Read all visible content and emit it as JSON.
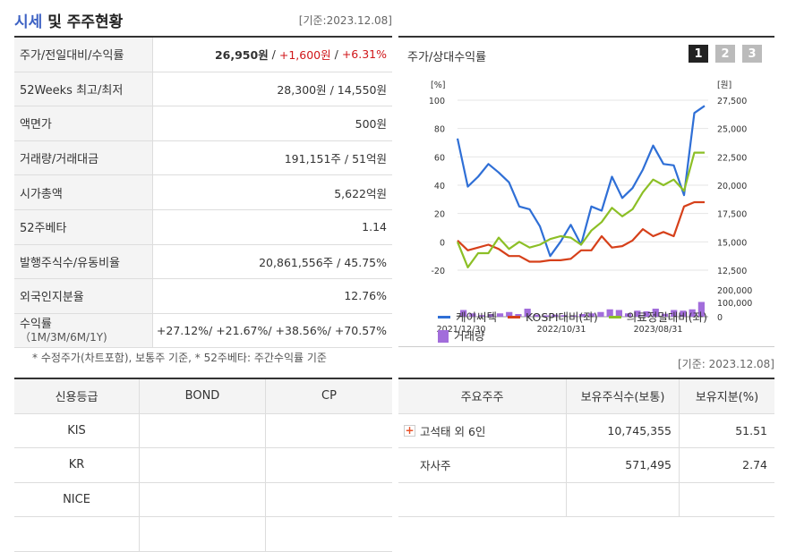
{
  "header": {
    "title_hl": "시세",
    "title_rest": " 및 주주현황",
    "date": "[기준:2023.12.08]"
  },
  "summary": [
    {
      "label": "주가/전일대비/수익률",
      "price": "26,950원",
      "sep1": " / ",
      "change": "+1,600원",
      "sep2": " / ",
      "rate": "+6.31%"
    },
    {
      "label": "52Weeks 최고/최저",
      "value": "28,300원 / 14,550원"
    },
    {
      "label": "액면가",
      "value": "500원"
    },
    {
      "label": "거래량/거래대금",
      "value": "191,151주 / 51억원"
    },
    {
      "label": "시가총액",
      "value": "5,622억원"
    },
    {
      "label": "52주베타",
      "value": "1.14"
    },
    {
      "label": "발행주식수/유동비율",
      "value": "20,861,556주 / 45.75%"
    },
    {
      "label": "외국인지분율",
      "value": "12.76%"
    },
    {
      "label": "수익률",
      "sublabel": "（1M/3M/6M/1Y)",
      "value": "+27.12%/ +21.67%/ +38.56%/ +70.57%"
    }
  ],
  "note": "* 수정주가(차트포함), 보통주 기준, * 52주베타: 주간수익률 기준",
  "chart": {
    "title": "주가/상대수익률",
    "pages": [
      "1",
      "2",
      "3"
    ],
    "active_page": "1",
    "date": "[기준: 2023.12.08]"
  },
  "chart_data": {
    "type": "line",
    "left_unit": "[%]",
    "right_unit": "[원]",
    "left_ticks": [
      "100",
      "80",
      "60",
      "40",
      "20",
      "0",
      "-20"
    ],
    "right_ticks": [
      "27,500",
      "25,000",
      "22,500",
      "20,000",
      "17,500",
      "15,000",
      "12,500"
    ],
    "volume_ticks": [
      "200,000",
      "100,000",
      "0"
    ],
    "x_ticks": [
      "2021/12/30",
      "2022/10/31",
      "2023/08/31"
    ],
    "ylim_left": [
      -20,
      100
    ],
    "colors": {
      "stock": "#2f6fd6",
      "kospi": "#d6401a",
      "sector": "#8cbf26",
      "volume": "#a26ddb"
    },
    "series": [
      {
        "name": "케이씨텍",
        "values": [
          73,
          39,
          46,
          55,
          49,
          42,
          25,
          23,
          11,
          -10,
          0,
          12,
          -2,
          25,
          22,
          46,
          31,
          38,
          51,
          68,
          55,
          54,
          33,
          91,
          96
        ]
      },
      {
        "name": "KOSPI대비(좌)",
        "values": [
          1,
          -6,
          -4,
          -2,
          -5,
          -10,
          -10,
          -14,
          -14,
          -13,
          -13,
          -12,
          -6,
          -6,
          4,
          -4,
          -3,
          1,
          9,
          4,
          7,
          4,
          25,
          28,
          28
        ]
      },
      {
        "name": "의료정밀대비(좌)",
        "values": [
          0,
          -18,
          -8,
          -8,
          3,
          -5,
          0,
          -4,
          -2,
          2,
          4,
          3,
          -2,
          8,
          14,
          24,
          18,
          23,
          35,
          44,
          40,
          44,
          36,
          63,
          63
        ]
      }
    ],
    "volume": {
      "name": "거래량",
      "values": [
        50,
        25,
        12,
        20,
        25,
        35,
        20,
        60,
        15,
        10,
        15,
        12,
        10,
        20,
        25,
        35,
        55,
        50,
        25,
        45,
        40,
        60,
        22,
        50,
        45,
        55,
        110
      ]
    }
  },
  "credit": {
    "headers": [
      "신용등급",
      "BOND",
      "CP"
    ],
    "rows": [
      [
        "KIS",
        "",
        ""
      ],
      [
        "KR",
        "",
        ""
      ],
      [
        "NICE",
        "",
        ""
      ],
      [
        "",
        "",
        ""
      ]
    ]
  },
  "holders": {
    "headers": [
      "주요주주",
      "보유주식수(보통)",
      "보유지분(%)"
    ],
    "rows": [
      {
        "name": "고석태 외 6인",
        "shares": "10,745,355",
        "pct": "51.51",
        "expand": true
      },
      {
        "name": "자사주",
        "shares": "571,495",
        "pct": "2.74",
        "expand": false
      },
      {
        "name": "",
        "shares": "",
        "pct": "",
        "expand": false
      }
    ]
  }
}
